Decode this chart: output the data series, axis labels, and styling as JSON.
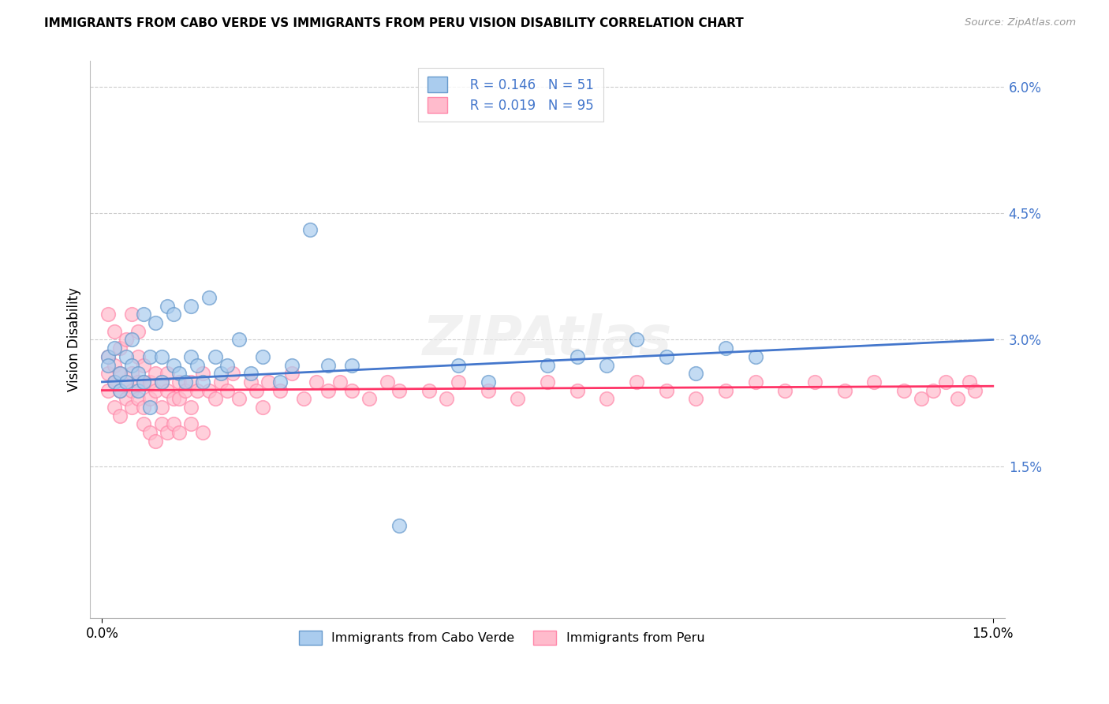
{
  "title": "IMMIGRANTS FROM CABO VERDE VS IMMIGRANTS FROM PERU VISION DISABILITY CORRELATION CHART",
  "source": "Source: ZipAtlas.com",
  "ylabel": "Vision Disability",
  "xlim": [
    -0.002,
    0.152
  ],
  "ylim": [
    -0.003,
    0.063
  ],
  "ytick_positions": [
    0.0,
    0.015,
    0.03,
    0.045,
    0.06
  ],
  "ytick_labels": [
    "",
    "1.5%",
    "3.0%",
    "4.5%",
    "6.0%"
  ],
  "xtick_positions": [
    0.0,
    0.15
  ],
  "xtick_labels": [
    "0.0%",
    "15.0%"
  ],
  "r_cabo": "0.146",
  "n_cabo": "51",
  "r_peru": "0.019",
  "n_peru": "95",
  "color_cabo_face": "#AACCEE",
  "color_cabo_edge": "#6699CC",
  "color_peru_face": "#FFBBCC",
  "color_peru_edge": "#FF88AA",
  "line_color_cabo": "#4477CC",
  "line_color_peru": "#FF3366",
  "legend_text_color": "#4477CC",
  "legend_label_cabo": "Immigrants from Cabo Verde",
  "legend_label_peru": "Immigrants from Peru",
  "cabo_x": [
    0.001,
    0.001,
    0.002,
    0.002,
    0.003,
    0.003,
    0.004,
    0.004,
    0.005,
    0.005,
    0.006,
    0.006,
    0.007,
    0.007,
    0.008,
    0.008,
    0.009,
    0.01,
    0.01,
    0.011,
    0.012,
    0.012,
    0.013,
    0.014,
    0.015,
    0.015,
    0.016,
    0.017,
    0.018,
    0.019,
    0.02,
    0.021,
    0.023,
    0.025,
    0.027,
    0.03,
    0.032,
    0.035,
    0.038,
    0.042,
    0.05,
    0.06,
    0.065,
    0.075,
    0.08,
    0.085,
    0.09,
    0.095,
    0.1,
    0.105,
    0.11
  ],
  "cabo_y": [
    0.028,
    0.027,
    0.029,
    0.025,
    0.026,
    0.024,
    0.028,
    0.025,
    0.027,
    0.03,
    0.026,
    0.024,
    0.025,
    0.033,
    0.022,
    0.028,
    0.032,
    0.025,
    0.028,
    0.034,
    0.027,
    0.033,
    0.026,
    0.025,
    0.028,
    0.034,
    0.027,
    0.025,
    0.035,
    0.028,
    0.026,
    0.027,
    0.03,
    0.026,
    0.028,
    0.025,
    0.027,
    0.043,
    0.027,
    0.027,
    0.008,
    0.027,
    0.025,
    0.027,
    0.028,
    0.027,
    0.03,
    0.028,
    0.026,
    0.029,
    0.028
  ],
  "peru_x": [
    0.001,
    0.001,
    0.001,
    0.002,
    0.002,
    0.002,
    0.003,
    0.003,
    0.003,
    0.004,
    0.004,
    0.005,
    0.005,
    0.005,
    0.006,
    0.006,
    0.006,
    0.007,
    0.007,
    0.007,
    0.008,
    0.008,
    0.009,
    0.009,
    0.01,
    0.01,
    0.011,
    0.011,
    0.012,
    0.013,
    0.013,
    0.014,
    0.015,
    0.015,
    0.016,
    0.017,
    0.018,
    0.019,
    0.02,
    0.021,
    0.022,
    0.023,
    0.025,
    0.026,
    0.027,
    0.028,
    0.03,
    0.032,
    0.034,
    0.036,
    0.038,
    0.04,
    0.042,
    0.045,
    0.048,
    0.05,
    0.055,
    0.058,
    0.06,
    0.065,
    0.07,
    0.075,
    0.08,
    0.085,
    0.09,
    0.095,
    0.1,
    0.105,
    0.11,
    0.115,
    0.12,
    0.125,
    0.13,
    0.135,
    0.138,
    0.14,
    0.142,
    0.144,
    0.146,
    0.147,
    0.001,
    0.002,
    0.003,
    0.004,
    0.005,
    0.006,
    0.007,
    0.008,
    0.009,
    0.01,
    0.011,
    0.012,
    0.013,
    0.015,
    0.017
  ],
  "peru_y": [
    0.026,
    0.024,
    0.028,
    0.025,
    0.022,
    0.027,
    0.024,
    0.026,
    0.021,
    0.025,
    0.023,
    0.026,
    0.024,
    0.022,
    0.025,
    0.028,
    0.023,
    0.025,
    0.022,
    0.027,
    0.025,
    0.023,
    0.026,
    0.024,
    0.025,
    0.022,
    0.026,
    0.024,
    0.023,
    0.025,
    0.023,
    0.024,
    0.025,
    0.022,
    0.024,
    0.026,
    0.024,
    0.023,
    0.025,
    0.024,
    0.026,
    0.023,
    0.025,
    0.024,
    0.022,
    0.025,
    0.024,
    0.026,
    0.023,
    0.025,
    0.024,
    0.025,
    0.024,
    0.023,
    0.025,
    0.024,
    0.024,
    0.023,
    0.025,
    0.024,
    0.023,
    0.025,
    0.024,
    0.023,
    0.025,
    0.024,
    0.023,
    0.024,
    0.025,
    0.024,
    0.025,
    0.024,
    0.025,
    0.024,
    0.023,
    0.024,
    0.025,
    0.023,
    0.025,
    0.024,
    0.033,
    0.031,
    0.029,
    0.03,
    0.033,
    0.031,
    0.02,
    0.019,
    0.018,
    0.02,
    0.019,
    0.02,
    0.019,
    0.02,
    0.019
  ]
}
